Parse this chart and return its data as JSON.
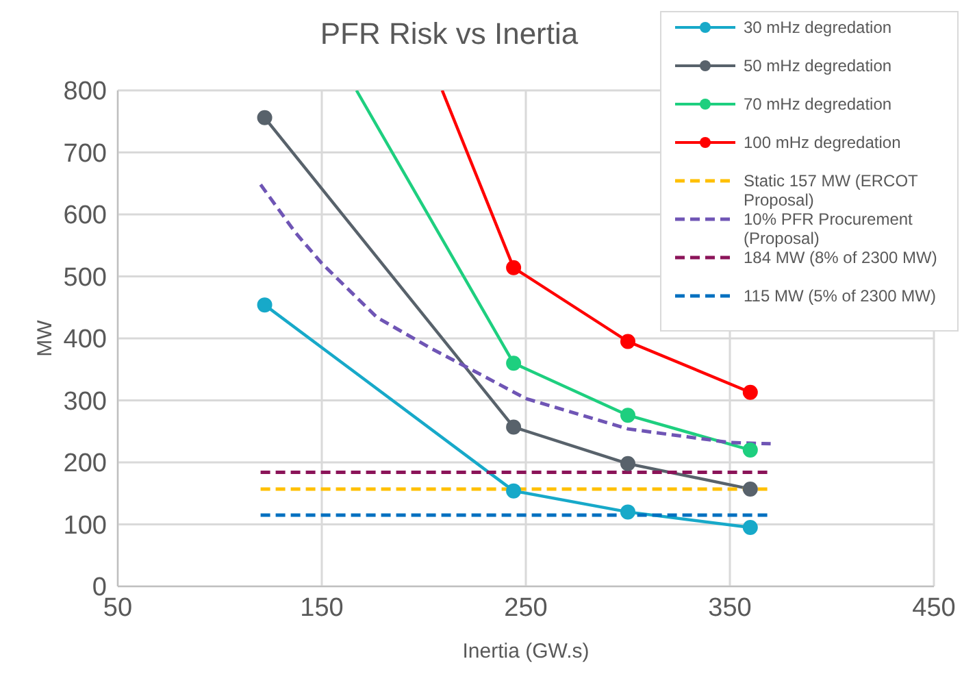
{
  "chart_data": {
    "type": "line",
    "title": "PFR Risk vs Inertia",
    "xlabel": "Inertia (GW.s)",
    "ylabel": "MW",
    "xlim": [
      50,
      450
    ],
    "xticks": [
      50,
      150,
      250,
      350,
      450
    ],
    "ylim": [
      0,
      800
    ],
    "yticks": [
      0,
      100,
      200,
      300,
      400,
      500,
      600,
      700,
      800
    ],
    "grid": true,
    "legend": "top right",
    "series": [
      {
        "name": "30 mHz degredation",
        "color": "#17a9c9",
        "marker": "circle",
        "line_style": "solid",
        "x": [
          122,
          244,
          300,
          360
        ],
        "values": [
          454,
          154,
          120,
          95
        ]
      },
      {
        "name": "50 mHz degredation",
        "color": "#58626b",
        "marker": "circle",
        "line_style": "solid",
        "x": [
          122,
          244,
          300,
          360
        ],
        "values": [
          756,
          257,
          198,
          157
        ]
      },
      {
        "name": "70 mHz degredation",
        "color": "#1ecf7f",
        "marker": "circle",
        "line_style": "solid",
        "x": [
          167,
          244,
          300,
          360
        ],
        "values": [
          800,
          360,
          276,
          220
        ]
      },
      {
        "name": "100 mHz degredation",
        "color": "#ff0000",
        "marker": "circle",
        "line_style": "solid",
        "x": [
          209,
          244,
          300,
          360
        ],
        "values": [
          800,
          514,
          395,
          313
        ]
      },
      {
        "name": "Static 157 MW (ERCOT Proposal)",
        "color": "#ffc000",
        "marker": "none",
        "line_style": "dashed",
        "x": [
          120,
          370
        ],
        "values": [
          157,
          157
        ]
      },
      {
        "name": "10% PFR Procurement (Proposal)",
        "color": "#6f55b5",
        "marker": "none",
        "line_style": "dashed",
        "x": [
          120,
          137,
          150,
          177,
          204,
          222,
          250,
          300,
          350,
          370
        ],
        "values": [
          648,
          571,
          521,
          434,
          383,
          352,
          303,
          254,
          232,
          230
        ]
      },
      {
        "name": "184 MW (8% of 2300 MW)",
        "color": "#8b1459",
        "marker": "none",
        "line_style": "dashed",
        "x": [
          120,
          370
        ],
        "values": [
          184,
          184
        ]
      },
      {
        "name": "115 MW (5% of 2300 MW)",
        "color": "#0070c0",
        "marker": "none",
        "line_style": "dashed",
        "x": [
          120,
          370
        ],
        "values": [
          115,
          115
        ]
      }
    ]
  }
}
